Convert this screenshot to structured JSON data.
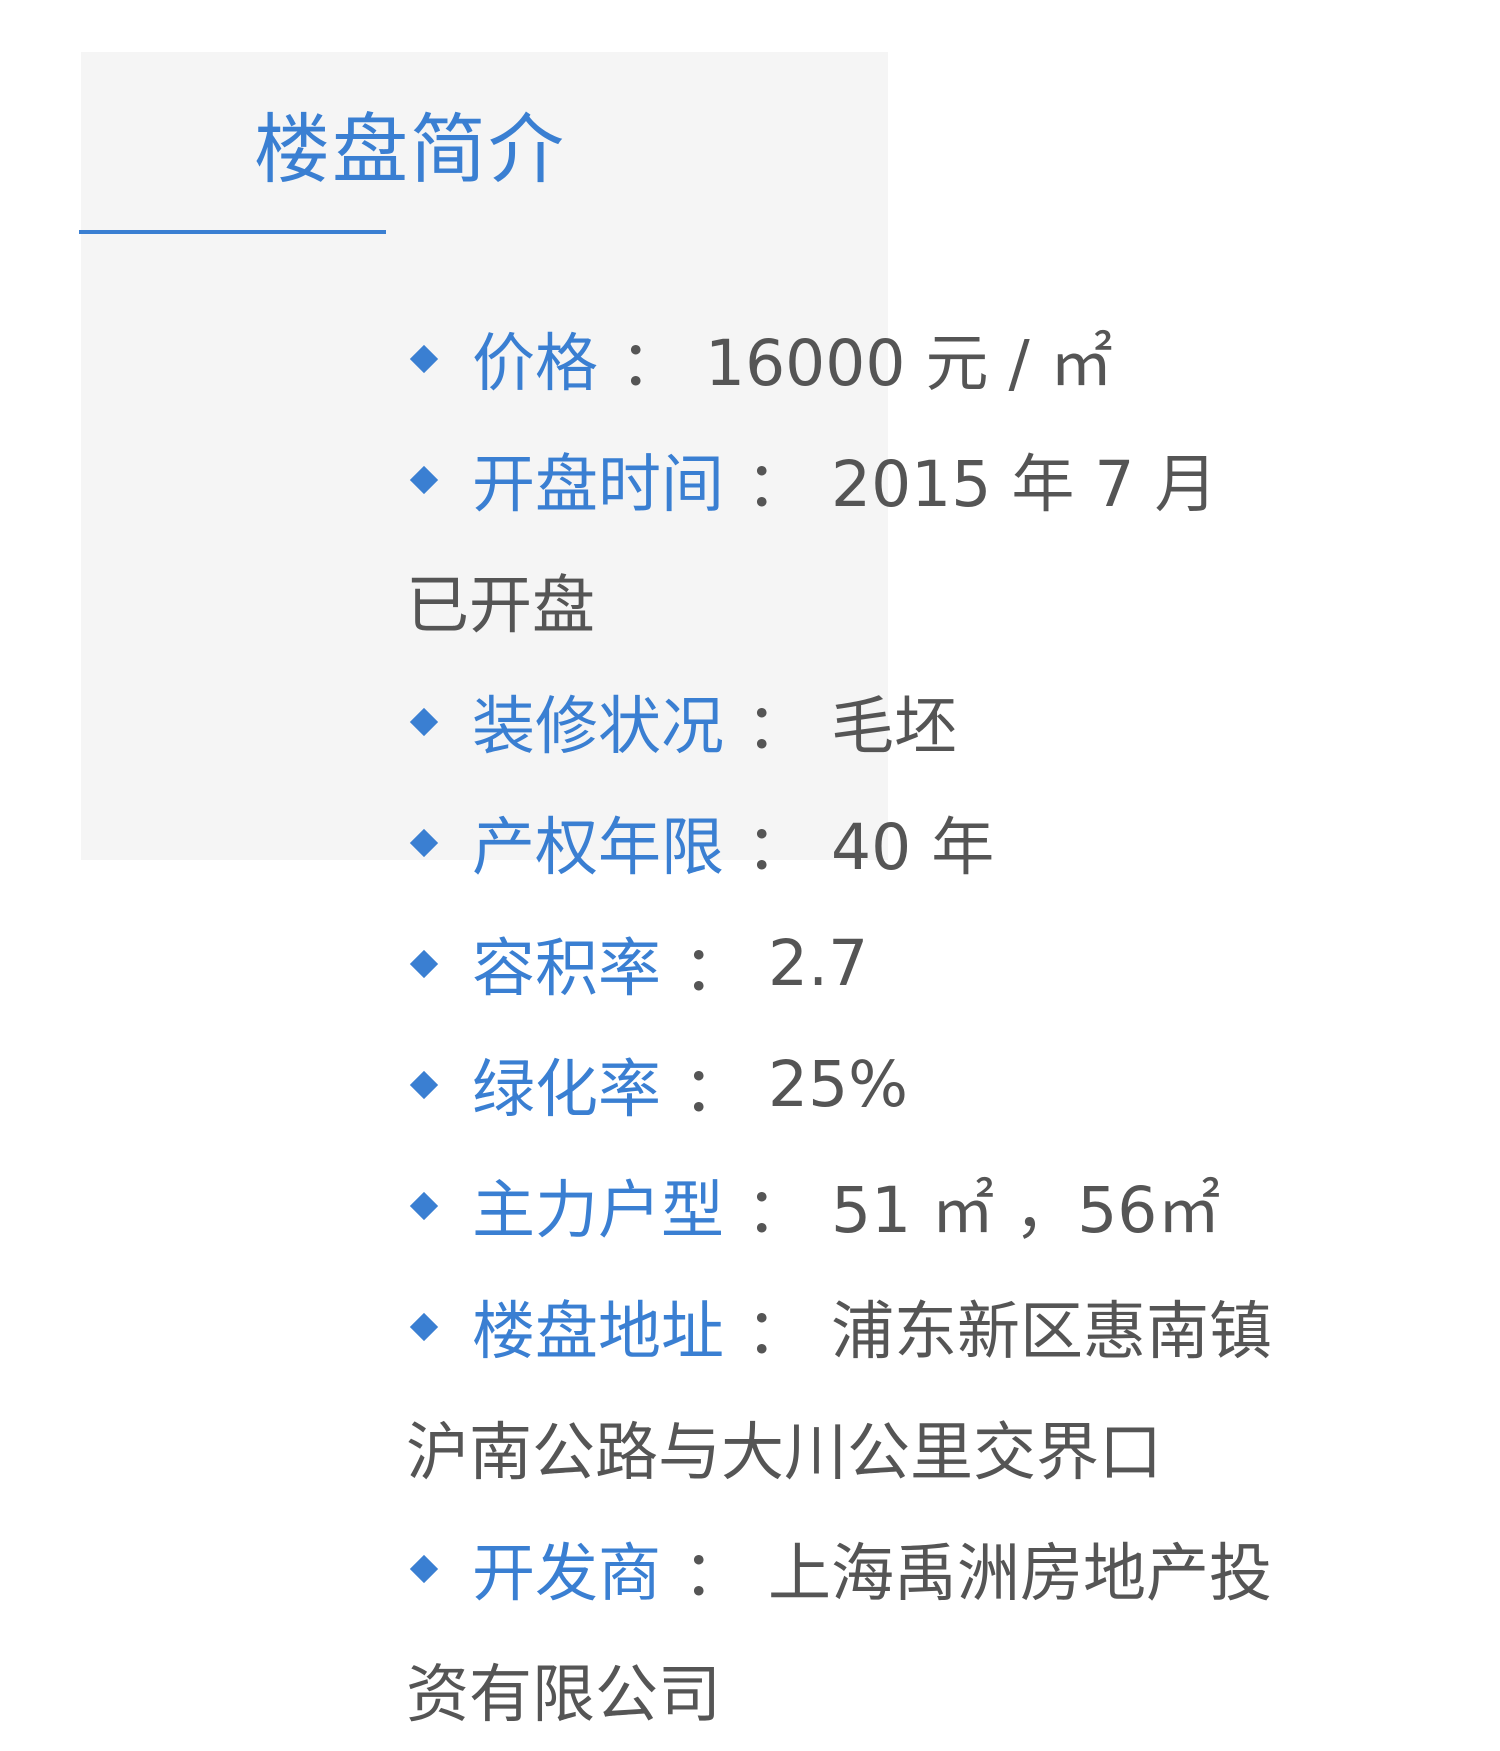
{
  "section": {
    "title": "楼盘简介"
  },
  "items": [
    {
      "label": "价格",
      "separator": "：",
      "value": "16000 元 / ㎡",
      "continuation": ""
    },
    {
      "label": "开盘时间",
      "separator": "：",
      "value": "2015 年 7 月",
      "continuation": "已开盘"
    },
    {
      "label": "装修状况",
      "separator": "：",
      "value": "毛坯",
      "continuation": ""
    },
    {
      "label": "产权年限",
      "separator": "：",
      "value": "40 年",
      "continuation": ""
    },
    {
      "label": "容积率",
      "separator": "：",
      "value": "2.7",
      "continuation": ""
    },
    {
      "label": "绿化率",
      "separator": "：",
      "value": "25%",
      "continuation": ""
    },
    {
      "label": "主力户型",
      "separator": "：",
      "value": "51 ㎡ ，56㎡",
      "continuation": ""
    },
    {
      "label": "楼盘地址",
      "separator": "：",
      "value": "浦东新区惠南镇",
      "continuation": "沪南公路与大川公里交界口"
    },
    {
      "label": "开发商",
      "separator": "：",
      "value": "上海禹洲房地产投",
      "continuation": "资有限公司"
    }
  ],
  "colors": {
    "accent": "#3a7fd2",
    "text": "#555555",
    "panel": "#f5f5f5"
  },
  "icons": {
    "bullet": "diamond-bullet-icon"
  }
}
